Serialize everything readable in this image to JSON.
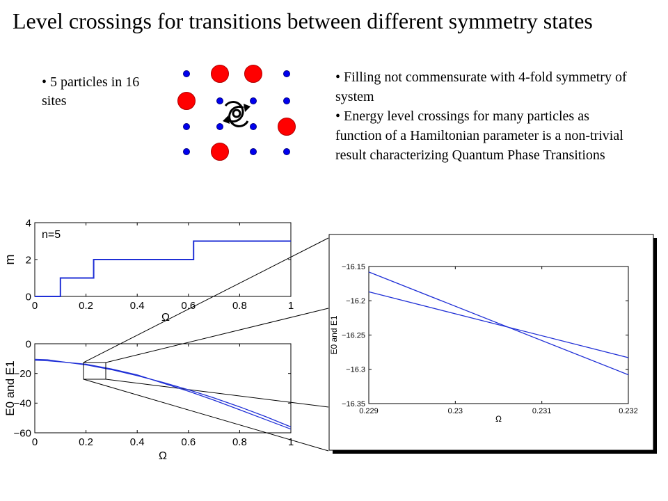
{
  "title": "Level crossings for transitions between different symmetry states",
  "bullets_left": [
    "• 5 particles in 16 sites"
  ],
  "bullets_right": [
    "• Filling not commensurate with 4-fold symmetry of system",
    "• Energy level crossings for many particles as function of a Hamiltonian parameter is a non-trivial result characterizing Quantum Phase Transitions"
  ],
  "lattice": {
    "rows": [
      [
        "small",
        "large",
        "large",
        "small"
      ],
      [
        "large",
        "small",
        "small",
        "small"
      ],
      [
        "small",
        "small",
        "small",
        "large"
      ],
      [
        "small",
        "large",
        "small",
        "small"
      ]
    ],
    "center_symbol": "rotation-icon",
    "colors": {
      "small": "#0000ee",
      "large": "#ff0000"
    }
  },
  "colors": {
    "line": "#1f2fd6",
    "axis": "#000000"
  },
  "chart_data": [
    {
      "type": "line",
      "annotation": "n=5",
      "xlabel": "Ω",
      "ylabel": "m",
      "xlim": [
        0,
        1
      ],
      "ylim": [
        0,
        4
      ],
      "xticks": [
        "0",
        "0.2",
        "0.4",
        "0.6",
        "0.8",
        "1"
      ],
      "yticks": [
        "0",
        "2",
        "4"
      ],
      "series": [
        {
          "x": [
            0,
            0.1,
            0.1,
            0.23,
            0.23,
            0.62,
            0.62,
            1.0
          ],
          "y": [
            0,
            0,
            1,
            1,
            2,
            2,
            3,
            3
          ]
        }
      ]
    },
    {
      "type": "line",
      "xlabel": "Ω",
      "ylabel": "E0 and E1",
      "xlim": [
        0,
        1
      ],
      "ylim": [
        -60,
        0
      ],
      "xticks": [
        "0",
        "0.2",
        "0.4",
        "0.6",
        "0.8",
        "1"
      ],
      "yticks": [
        "0",
        "−20",
        "−40",
        "−60"
      ],
      "series": [
        {
          "x": [
            0,
            0.05,
            0.1,
            0.2,
            0.3,
            0.4,
            0.5,
            0.6,
            0.7,
            0.8,
            0.9,
            1.0
          ],
          "y": [
            -10.5,
            -10.8,
            -12,
            -14.2,
            -17.5,
            -21.5,
            -26,
            -31,
            -36.5,
            -42.5,
            -49,
            -56
          ]
        },
        {
          "x": [
            0,
            0.05,
            0.1,
            0.2,
            0.3,
            0.4,
            0.5,
            0.6,
            0.7,
            0.8,
            0.9,
            1.0
          ],
          "y": [
            -11.2,
            -11.5,
            -12.2,
            -13.8,
            -17,
            -21,
            -26.5,
            -32,
            -38,
            -44.5,
            -51,
            -57.5
          ]
        }
      ]
    },
    {
      "type": "line",
      "xlabel": "Ω",
      "ylabel": "E0 and E1",
      "xlim": [
        0.229,
        0.232
      ],
      "ylim": [
        -16.35,
        -16.15
      ],
      "xticks": [
        "0.229",
        "0.23",
        "0.231",
        "0.232"
      ],
      "yticks": [
        "−16.15",
        "−16.2",
        "−16.25",
        "−16.3",
        "−16.35"
      ],
      "series": [
        {
          "x": [
            0.229,
            0.232
          ],
          "y": [
            -16.158,
            -16.308
          ]
        },
        {
          "x": [
            0.229,
            0.232
          ],
          "y": [
            -16.187,
            -16.283
          ]
        }
      ]
    }
  ]
}
